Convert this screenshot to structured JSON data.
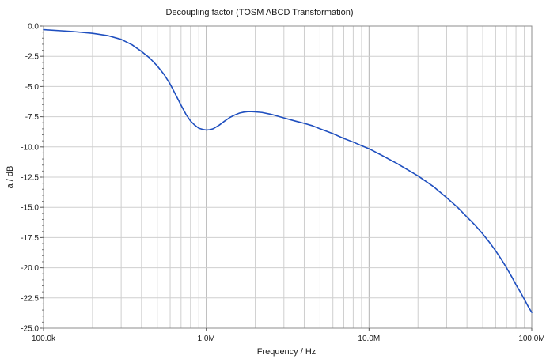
{
  "chart_data": {
    "type": "line",
    "title": "Decoupling factor (TOSM ABCD Transformation)",
    "xlabel": "Frequency / Hz",
    "ylabel": "a / dB",
    "x_scale": "log",
    "xlim": [
      100000,
      100000000
    ],
    "ylim": [
      -25.0,
      0.0
    ],
    "grid": true,
    "x_ticks": [
      {
        "value": 100000,
        "label": "100.0k"
      },
      {
        "value": 1000000,
        "label": "1.0M"
      },
      {
        "value": 10000000,
        "label": "10.0M"
      },
      {
        "value": 100000000,
        "label": "100.0M"
      }
    ],
    "y_ticks": [
      {
        "value": 0.0,
        "label": "0.0"
      },
      {
        "value": -2.5,
        "label": "-2.5"
      },
      {
        "value": -5.0,
        "label": "-5.0"
      },
      {
        "value": -7.5,
        "label": "-7.5"
      },
      {
        "value": -10.0,
        "label": "-10.0"
      },
      {
        "value": -12.5,
        "label": "-12.5"
      },
      {
        "value": -15.0,
        "label": "-15.0"
      },
      {
        "value": -17.5,
        "label": "-17.5"
      },
      {
        "value": -20.0,
        "label": "-20.0"
      },
      {
        "value": -22.5,
        "label": "-22.5"
      },
      {
        "value": -25.0,
        "label": "-25.0"
      }
    ],
    "series": [
      {
        "color": "#1f4fbf",
        "x": [
          100000,
          150000,
          200000,
          250000,
          300000,
          350000,
          400000,
          450000,
          500000,
          550000,
          600000,
          650000,
          700000,
          750000,
          800000,
          850000,
          900000,
          950000,
          1000000,
          1050000,
          1100000,
          1200000,
          1300000,
          1400000,
          1500000,
          1600000,
          1700000,
          1800000,
          1900000,
          2000000,
          2200000,
          2500000,
          3000000,
          3500000,
          4000000,
          4500000,
          5000000,
          6000000,
          7000000,
          8000000,
          9000000,
          10000000,
          12000000,
          15000000,
          20000000,
          25000000,
          30000000,
          35000000,
          40000000,
          45000000,
          50000000,
          55000000,
          60000000,
          65000000,
          70000000,
          75000000,
          80000000,
          85000000,
          90000000,
          95000000,
          100000000
        ],
        "y": [
          -0.3,
          -0.45,
          -0.6,
          -0.8,
          -1.1,
          -1.55,
          -2.1,
          -2.65,
          -3.3,
          -4.0,
          -4.8,
          -5.7,
          -6.55,
          -7.3,
          -7.85,
          -8.2,
          -8.45,
          -8.55,
          -8.6,
          -8.58,
          -8.5,
          -8.2,
          -7.85,
          -7.55,
          -7.35,
          -7.2,
          -7.12,
          -7.08,
          -7.08,
          -7.1,
          -7.15,
          -7.3,
          -7.6,
          -7.85,
          -8.05,
          -8.25,
          -8.5,
          -8.9,
          -9.3,
          -9.6,
          -9.9,
          -10.15,
          -10.7,
          -11.4,
          -12.4,
          -13.3,
          -14.2,
          -15.0,
          -15.8,
          -16.5,
          -17.2,
          -17.9,
          -18.6,
          -19.3,
          -20.0,
          -20.7,
          -21.4,
          -22.0,
          -22.6,
          -23.2,
          -23.7
        ]
      }
    ]
  }
}
